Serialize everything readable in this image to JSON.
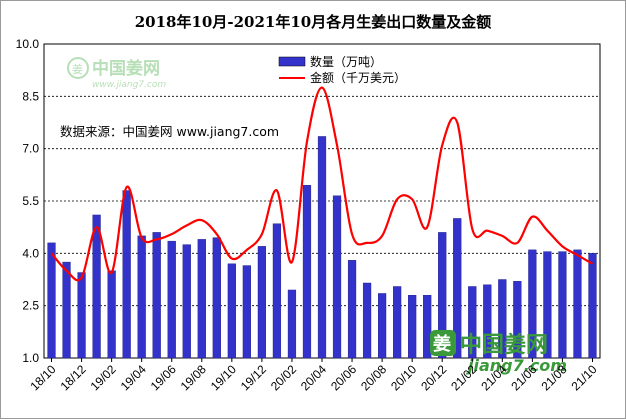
{
  "chart_data": {
    "type": "bar+line",
    "title": "2018年10月-2021年10月各月生姜出口数量及金额",
    "ylim": [
      1.0,
      10.0
    ],
    "yticks": [
      "1.0",
      "2.5",
      "4.0",
      "5.5",
      "7.0",
      "8.5",
      "10.0"
    ],
    "ytick_values": [
      1.0,
      2.5,
      4.0,
      5.5,
      7.0,
      8.5,
      10.0
    ],
    "xtick_labels": [
      "18/10",
      "18/12",
      "19/02",
      "19/04",
      "19/06",
      "19/08",
      "19/10",
      "19/12",
      "20/02",
      "20/04",
      "20/06",
      "20/08",
      "20/10",
      "20/12",
      "21/02",
      "21/04",
      "21/06",
      "21/08",
      "21/10"
    ],
    "categories": [
      "18/10",
      "18/11",
      "18/12",
      "19/01",
      "19/02",
      "19/03",
      "19/04",
      "19/05",
      "19/06",
      "19/07",
      "19/08",
      "19/09",
      "19/10",
      "19/11",
      "19/12",
      "20/01",
      "20/02",
      "20/03",
      "20/04",
      "20/05",
      "20/06",
      "20/07",
      "20/08",
      "20/09",
      "20/10",
      "20/11",
      "20/12",
      "21/01",
      "21/02",
      "21/03",
      "21/04",
      "21/05",
      "21/06",
      "21/07",
      "21/08",
      "21/09",
      "21/10"
    ],
    "series": [
      {
        "name": "数量（万吨）",
        "type": "bar",
        "color": "#3333cc",
        "values": [
          4.3,
          3.75,
          3.45,
          5.1,
          3.5,
          5.8,
          4.5,
          4.6,
          4.35,
          4.25,
          4.4,
          4.45,
          3.7,
          3.65,
          4.2,
          4.85,
          2.95,
          5.95,
          7.35,
          5.65,
          3.8,
          3.15,
          2.85,
          3.05,
          2.8,
          2.8,
          4.6,
          5.0,
          3.05,
          3.1,
          3.25,
          3.2,
          4.1,
          4.05,
          4.05,
          4.1,
          4.0
        ]
      },
      {
        "name": "金额（千万美元）",
        "type": "line",
        "color": "#ff0000",
        "values": [
          4.0,
          3.5,
          3.3,
          4.75,
          3.45,
          5.9,
          4.45,
          4.4,
          4.55,
          4.8,
          4.95,
          4.55,
          3.85,
          4.1,
          4.55,
          5.8,
          3.75,
          7.2,
          8.75,
          7.1,
          4.55,
          4.3,
          4.5,
          5.55,
          5.55,
          4.75,
          7.1,
          7.75,
          4.7,
          4.65,
          4.5,
          4.3,
          5.05,
          4.65,
          4.2,
          3.95,
          3.7
        ]
      }
    ],
    "source_note": "数据来源：中国姜网 www.jiang7.com",
    "legend_position": "top-right"
  },
  "watermark": {
    "top_cn": "中国姜网",
    "top_url": "www.jiang7.com",
    "bottom_cn": "中国姜网",
    "bottom_url": "jiang7.com",
    "glyph": "姜"
  },
  "colors": {
    "bar": "#3333cc",
    "line": "#ff0000",
    "watermark": "#3a9a3a",
    "watermark_light": "#9fd59f",
    "plot_bg": "#ffffff"
  }
}
